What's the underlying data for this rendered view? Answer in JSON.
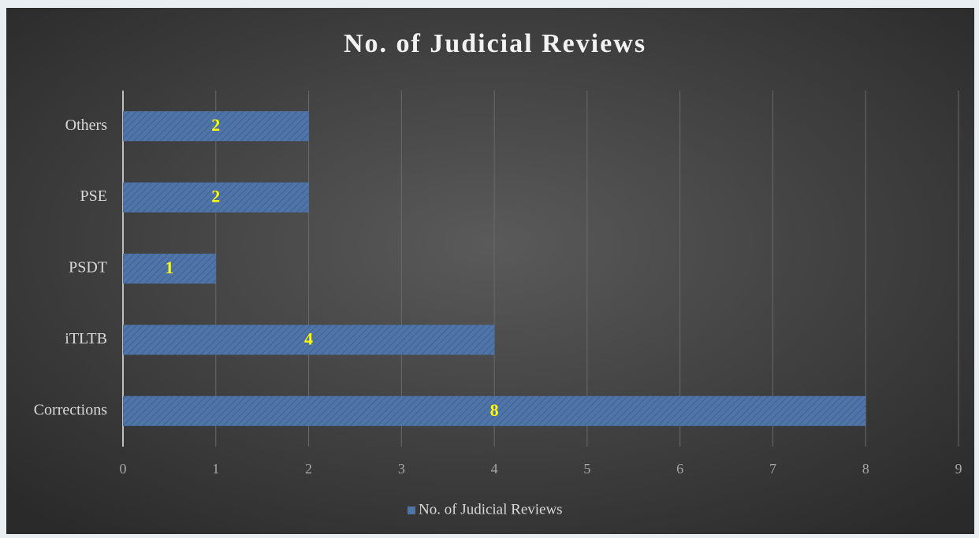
{
  "chart_data": {
    "type": "barh",
    "title": "No. of Judicial Reviews",
    "categories": [
      "Corrections",
      "iTLTB",
      "PSDT",
      "PSE",
      "Others"
    ],
    "series": [
      {
        "name": "No. of Judicial Reviews",
        "color": "#4f74a8",
        "values": [
          8,
          4,
          1,
          2,
          2
        ]
      }
    ],
    "label_color": "#ffff00",
    "xlim": [
      0,
      9
    ],
    "xticks": [
      0,
      1,
      2,
      3,
      4,
      5,
      6,
      7,
      8,
      9
    ],
    "grid": true,
    "legend": "bottom"
  }
}
